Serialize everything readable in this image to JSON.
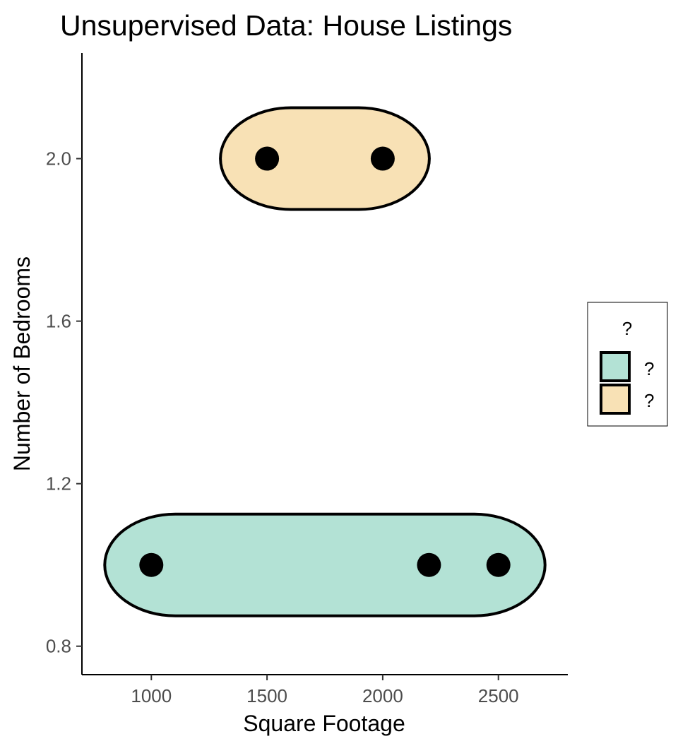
{
  "chart_data": {
    "type": "scatter",
    "title": "Unsupervised Data: House Listings",
    "xlabel": "Square Footage",
    "ylabel": "Number of Bedrooms",
    "xlim": [
      700,
      2800
    ],
    "ylim": [
      0.73,
      2.26
    ],
    "x_ticks": [
      1000,
      1500,
      2000,
      2500
    ],
    "x_tick_labels": [
      "1000",
      "1500",
      "2000",
      "2500"
    ],
    "y_ticks": [
      0.8,
      1.2,
      1.6,
      2.0
    ],
    "y_tick_labels": [
      "0.8",
      "1.2",
      "1.6",
      "2.0"
    ],
    "grid": false,
    "points": [
      {
        "x": 1000,
        "y": 1
      },
      {
        "x": 1500,
        "y": 2
      },
      {
        "x": 2000,
        "y": 2
      },
      {
        "x": 2200,
        "y": 1
      },
      {
        "x": 2500,
        "y": 1
      }
    ],
    "groups": [
      {
        "label": "?",
        "color": "#b3e2d5",
        "x_range": [
          1000,
          2500
        ],
        "y": 1
      },
      {
        "label": "?",
        "color": "#f8e1b5",
        "x_range": [
          1500,
          2000
        ],
        "y": 2
      }
    ],
    "legend": {
      "title": "?",
      "position": "right",
      "entries": [
        {
          "label": "?",
          "color": "#b3e2d5"
        },
        {
          "label": "?",
          "color": "#f8e1b5"
        }
      ]
    }
  }
}
